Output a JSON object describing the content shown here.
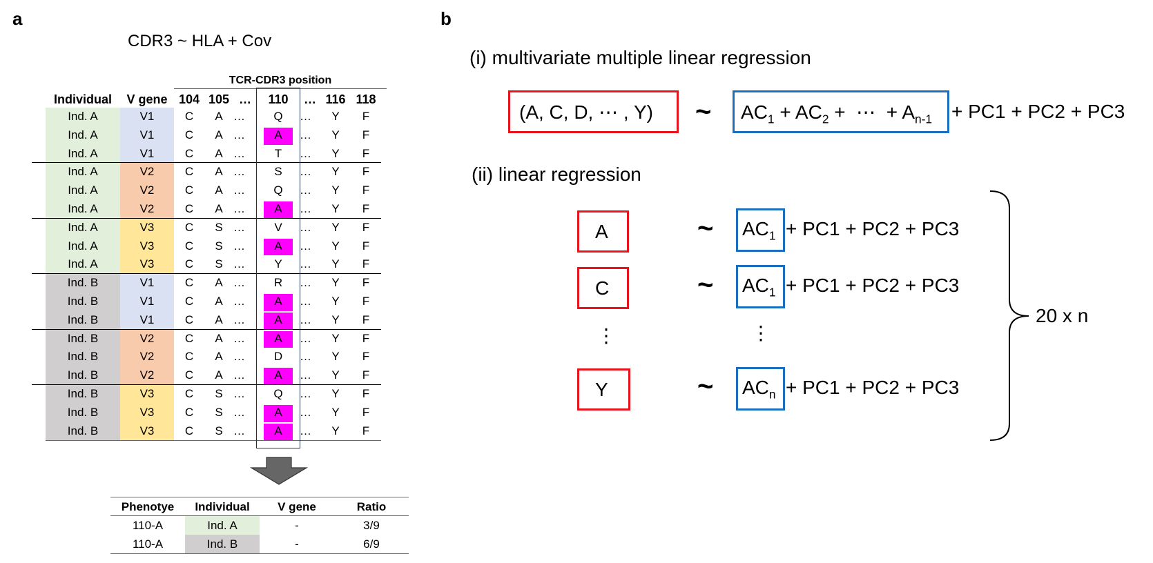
{
  "panel_a": {
    "letter": "a",
    "formula": "CDR3  ~  HLA + Cov",
    "position_header": "TCR-CDR3 position",
    "columns": [
      "Individual",
      "V gene",
      "104",
      "105",
      "…",
      "110",
      "…",
      "116",
      "118"
    ],
    "rows": [
      {
        "ind": "Ind. A",
        "v": "V1",
        "p104": "C",
        "p105": "A",
        "dots": "…",
        "p110": "Q",
        "dots2": "…",
        "p116": "Y",
        "p118": "F"
      },
      {
        "ind": "Ind. A",
        "v": "V1",
        "p104": "C",
        "p105": "A",
        "dots": "…",
        "p110": "A",
        "dots2": "…",
        "p116": "Y",
        "p118": "F"
      },
      {
        "ind": "Ind. A",
        "v": "V1",
        "p104": "C",
        "p105": "A",
        "dots": "…",
        "p110": "T",
        "dots2": "…",
        "p116": "Y",
        "p118": "F"
      },
      {
        "ind": "Ind. A",
        "v": "V2",
        "p104": "C",
        "p105": "A",
        "dots": "…",
        "p110": "S",
        "dots2": "…",
        "p116": "Y",
        "p118": "F"
      },
      {
        "ind": "Ind. A",
        "v": "V2",
        "p104": "C",
        "p105": "A",
        "dots": "…",
        "p110": "Q",
        "dots2": "…",
        "p116": "Y",
        "p118": "F"
      },
      {
        "ind": "Ind. A",
        "v": "V2",
        "p104": "C",
        "p105": "A",
        "dots": "…",
        "p110": "A",
        "dots2": "…",
        "p116": "Y",
        "p118": "F"
      },
      {
        "ind": "Ind. A",
        "v": "V3",
        "p104": "C",
        "p105": "S",
        "dots": "…",
        "p110": "V",
        "dots2": "…",
        "p116": "Y",
        "p118": "F"
      },
      {
        "ind": "Ind. A",
        "v": "V3",
        "p104": "C",
        "p105": "S",
        "dots": "…",
        "p110": "A",
        "dots2": "…",
        "p116": "Y",
        "p118": "F"
      },
      {
        "ind": "Ind. A",
        "v": "V3",
        "p104": "C",
        "p105": "S",
        "dots": "…",
        "p110": "Y",
        "dots2": "…",
        "p116": "Y",
        "p118": "F"
      },
      {
        "ind": "Ind. B",
        "v": "V1",
        "p104": "C",
        "p105": "A",
        "dots": "…",
        "p110": "R",
        "dots2": "…",
        "p116": "Y",
        "p118": "F"
      },
      {
        "ind": "Ind. B",
        "v": "V1",
        "p104": "C",
        "p105": "A",
        "dots": "…",
        "p110": "A",
        "dots2": "…",
        "p116": "Y",
        "p118": "F"
      },
      {
        "ind": "Ind. B",
        "v": "V1",
        "p104": "C",
        "p105": "A",
        "dots": "…",
        "p110": "A",
        "dots2": "…",
        "p116": "Y",
        "p118": "F"
      },
      {
        "ind": "Ind. B",
        "v": "V2",
        "p104": "C",
        "p105": "A",
        "dots": "…",
        "p110": "A",
        "dots2": "…",
        "p116": "Y",
        "p118": "F"
      },
      {
        "ind": "Ind. B",
        "v": "V2",
        "p104": "C",
        "p105": "A",
        "dots": "…",
        "p110": "D",
        "dots2": "…",
        "p116": "Y",
        "p118": "F"
      },
      {
        "ind": "Ind. B",
        "v": "V2",
        "p104": "C",
        "p105": "A",
        "dots": "…",
        "p110": "A",
        "dots2": "…",
        "p116": "Y",
        "p118": "F"
      },
      {
        "ind": "Ind. B",
        "v": "V3",
        "p104": "C",
        "p105": "S",
        "dots": "…",
        "p110": "Q",
        "dots2": "…",
        "p116": "Y",
        "p118": "F"
      },
      {
        "ind": "Ind. B",
        "v": "V3",
        "p104": "C",
        "p105": "S",
        "dots": "…",
        "p110": "A",
        "dots2": "…",
        "p116": "Y",
        "p118": "F"
      },
      {
        "ind": "Ind. B",
        "v": "V3",
        "p104": "C",
        "p105": "S",
        "dots": "…",
        "p110": "A",
        "dots2": "…",
        "p116": "Y",
        "p118": "F"
      }
    ],
    "colors": {
      "ind_a": "#e2efda",
      "ind_b": "#d0cece",
      "v1": "#d9e1f2",
      "v2": "#f8cbad",
      "v3": "#ffe699",
      "highlight": "#ff00ff",
      "arrow": "#666666"
    },
    "summary": {
      "headers": [
        "Phenotye",
        "Individual",
        "V gene",
        "Ratio"
      ],
      "rows": [
        {
          "phenotype": "110-A",
          "individual": "Ind. A",
          "vgene": "-",
          "ratio": "3/9"
        },
        {
          "phenotype": "110-A",
          "individual": "Ind. B",
          "vgene": "-",
          "ratio": "6/9"
        }
      ]
    }
  },
  "panel_b": {
    "letter": "b",
    "section_i": "(i) multivariate multiple linear regression",
    "section_ii": "(ii) linear regression",
    "mv_lhs": "(A, C, D,  ⋯ , Y)",
    "tilde": "~",
    "mv_rhs_parts": [
      "AC",
      "1",
      " + AC",
      "2",
      " +  ⋯  + A",
      "n-1"
    ],
    "covariates": "+ PC1 + PC2 + PC3",
    "lr_rows": [
      {
        "lhs": "A",
        "ac": "AC",
        "sub": "1"
      },
      {
        "lhs": "C",
        "ac": "AC",
        "sub": "1"
      },
      {
        "lhs": "Y",
        "ac": "AC",
        "sub": "n"
      }
    ],
    "vdots": "⋮",
    "count": "20 x n",
    "colors": {
      "red": "#e8141b",
      "blue": "#1a6fbf"
    }
  }
}
